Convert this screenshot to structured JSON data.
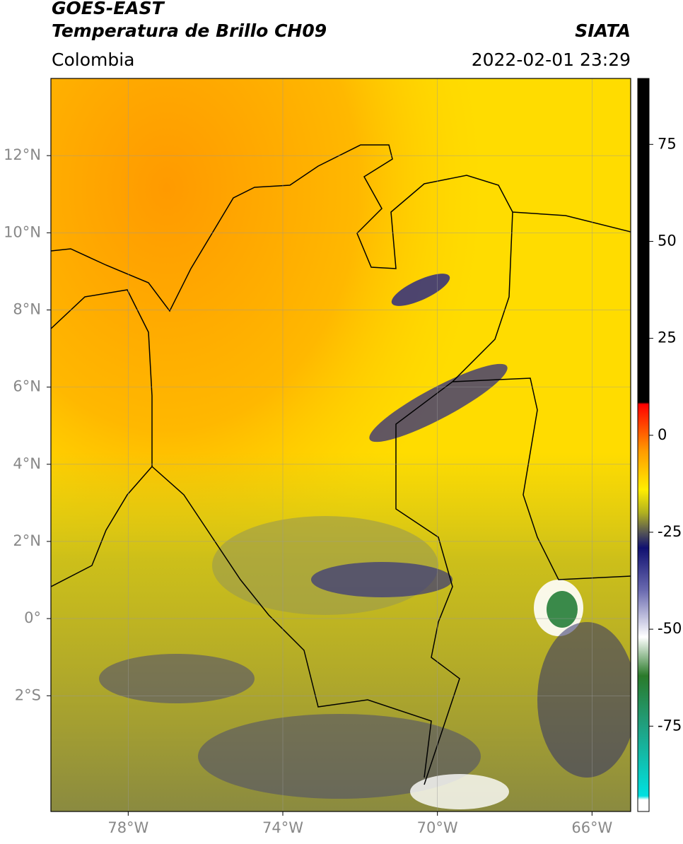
{
  "header": {
    "title": "GOES-EAST",
    "subtitle": "Temperatura de Brillo CH09",
    "source": "SIATA",
    "region": "Colombia",
    "timestamp": "2022-02-01 23:29"
  },
  "map": {
    "xlim": [
      -80,
      -65
    ],
    "ylim": [
      -5,
      14
    ],
    "xticks": [
      {
        "value": -78,
        "label": "78°W"
      },
      {
        "value": -74,
        "label": "74°W"
      },
      {
        "value": -70,
        "label": "70°W"
      },
      {
        "value": -66,
        "label": "66°W"
      }
    ],
    "yticks": [
      {
        "value": 12,
        "label": "12°N"
      },
      {
        "value": 10,
        "label": "10°N"
      },
      {
        "value": 8,
        "label": "8°N"
      },
      {
        "value": 6,
        "label": "6°N"
      },
      {
        "value": 4,
        "label": "4°N"
      },
      {
        "value": 2,
        "label": "2°N"
      },
      {
        "value": 0,
        "label": "0°"
      },
      {
        "value": -2,
        "label": "2°S"
      }
    ],
    "grid": true,
    "colorbar": {
      "lim": [
        -97,
        92
      ],
      "ticks": [
        75,
        50,
        25,
        0,
        -25,
        -50,
        -75
      ],
      "stops": [
        {
          "value": -97,
          "color": "#ffffff"
        },
        {
          "value": -94,
          "color": "#ffffff"
        },
        {
          "value": -93,
          "color": "#00e0e0"
        },
        {
          "value": -75,
          "color": "#20a080"
        },
        {
          "value": -62,
          "color": "#2a7a2a"
        },
        {
          "value": -52,
          "color": "#ffffff"
        },
        {
          "value": -40,
          "color": "#6a6ab0"
        },
        {
          "value": -29,
          "color": "#101070"
        },
        {
          "value": -25,
          "color": "#555555"
        },
        {
          "value": -20,
          "color": "#b0b020"
        },
        {
          "value": -14,
          "color": "#ffee00"
        },
        {
          "value": -4,
          "color": "#ff9a00"
        },
        {
          "value": 8,
          "color": "#ff0000"
        },
        {
          "value": 8.5,
          "color": "#000000"
        },
        {
          "value": 92,
          "color": "#000000"
        }
      ]
    }
  }
}
